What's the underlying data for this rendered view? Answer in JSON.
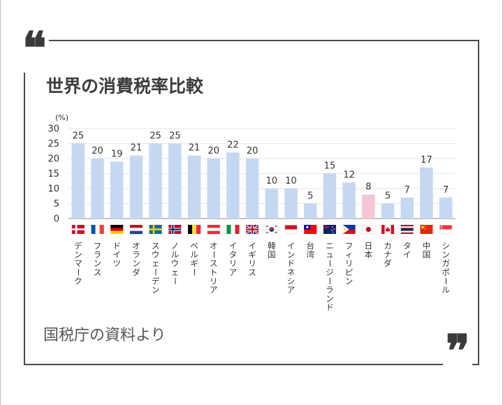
{
  "title": "世界の消費税率比較",
  "source": "国税庁の資料より",
  "quote_open": "❝",
  "quote_close": "❞",
  "colors": {
    "bar": "#c5d8f2",
    "highlight_bar": "#f5c6d3",
    "grid": "#e6e6e6",
    "axis": "#888888",
    "frame": "#4a4a4a"
  },
  "chart_data": {
    "type": "bar",
    "unit_label": "(%)",
    "ylim": [
      0,
      30
    ],
    "y_ticks": [
      0,
      5,
      10,
      15,
      20,
      25,
      30
    ],
    "grid": true,
    "highlight_category": "日本",
    "categories": [
      "デンマーク",
      "フランス",
      "ドイツ",
      "オランダ",
      "スウェーデン",
      "ノルウェー",
      "ベルギー",
      "オーストリア",
      "イタリア",
      "イギリス",
      "韓国",
      "インドネシア",
      "台湾",
      "ニュージーランド",
      "フィリピン",
      "日本",
      "カナダ",
      "タイ",
      "中国",
      "シンガポール"
    ],
    "values": [
      25,
      20,
      19,
      21,
      25,
      25,
      21,
      20,
      22,
      20,
      10,
      10,
      5,
      15,
      12,
      8,
      5,
      7,
      17,
      7
    ],
    "flags": [
      "denmark-flag",
      "france-flag",
      "germany-flag",
      "netherlands-flag",
      "sweden-flag",
      "norway-flag",
      "belgium-flag",
      "austria-flag",
      "italy-flag",
      "uk-flag",
      "korea-flag",
      "indonesia-flag",
      "taiwan-flag",
      "new-zealand-flag",
      "philippines-flag",
      "japan-flag",
      "canada-flag",
      "thailand-flag",
      "china-flag",
      "singapore-flag"
    ]
  }
}
